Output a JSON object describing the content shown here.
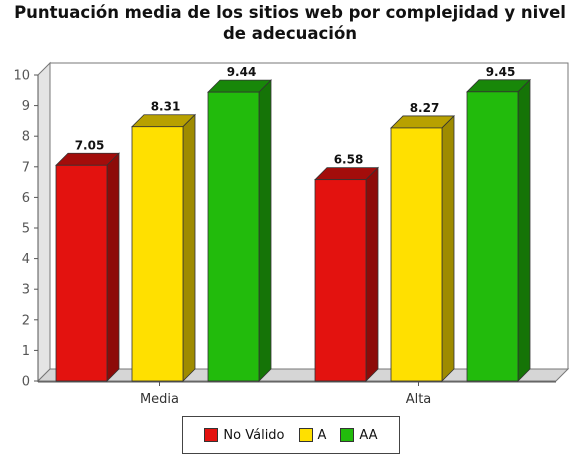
{
  "chart_data": {
    "type": "bar",
    "title": "Puntuación media de los sitios web por complejidad y nivel de adecuación",
    "categories": [
      "Media",
      "Alta"
    ],
    "series": [
      {
        "name": "No Válido",
        "color": "#e3120f",
        "values": [
          7.05,
          6.58
        ]
      },
      {
        "name": "A",
        "color": "#ffe000",
        "values": [
          8.31,
          8.27
        ]
      },
      {
        "name": "AA",
        "color": "#22bb0c",
        "values": [
          9.44,
          9.45
        ]
      }
    ],
    "ylim": [
      0,
      10
    ],
    "yticks": [
      "0",
      "1",
      "2",
      "3",
      "4",
      "5",
      "6",
      "7",
      "8",
      "9",
      "10"
    ],
    "data_labels": [
      [
        "7.05",
        "6.58"
      ],
      [
        "8.31",
        "8.27"
      ],
      [
        "9.44",
        "9.45"
      ]
    ],
    "grid": false,
    "legend_position": "bottom",
    "style": "3d"
  }
}
